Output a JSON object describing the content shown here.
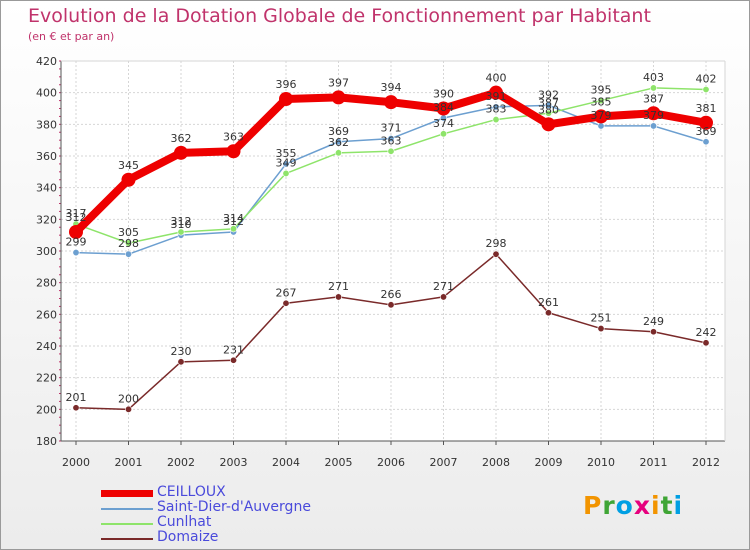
{
  "chart_data": {
    "type": "line",
    "title": "Evolution de la Dotation Globale de Fonctionnement par Habitant",
    "subtitle": "(en € et par an)",
    "xlabel": "",
    "ylabel": "",
    "x": [
      "2000",
      "2001",
      "2002",
      "2003",
      "2004",
      "2005",
      "2006",
      "2007",
      "2008",
      "2009",
      "2010",
      "2011",
      "2012"
    ],
    "ylim": [
      180,
      420
    ],
    "yticks": [
      180,
      200,
      220,
      240,
      260,
      280,
      300,
      320,
      340,
      360,
      380,
      400,
      420
    ],
    "grid": true,
    "series": [
      {
        "name": "CEILLOUX",
        "color": "#ee0000",
        "values": [
          312,
          345,
          362,
          363,
          396,
          397,
          394,
          390,
          400,
          380,
          385,
          387,
          381
        ]
      },
      {
        "name": "Saint-Dier-d'Auvergne",
        "color": "#6c9fd0",
        "values": [
          299,
          298,
          310,
          312,
          355,
          369,
          371,
          384,
          391,
          392,
          379,
          379,
          369
        ]
      },
      {
        "name": "Cunlhat",
        "color": "#8ee46a",
        "values": [
          317,
          305,
          312,
          314,
          349,
          362,
          363,
          374,
          383,
          387,
          395,
          403,
          402
        ]
      },
      {
        "name": "Domaize",
        "color": "#7a2a2a",
        "values": [
          201,
          200,
          230,
          231,
          267,
          271,
          266,
          271,
          298,
          261,
          251,
          249,
          242
        ]
      }
    ]
  },
  "logo": {
    "letters": [
      {
        "ch": "P",
        "color": "#f29400"
      },
      {
        "ch": "r",
        "color": "#3fa535"
      },
      {
        "ch": "o",
        "color": "#009fe3"
      },
      {
        "ch": "x",
        "color": "#e6007e"
      },
      {
        "ch": "i",
        "color": "#f29400"
      },
      {
        "ch": "t",
        "color": "#3fa535"
      },
      {
        "ch": "i",
        "color": "#009fe3"
      }
    ]
  }
}
